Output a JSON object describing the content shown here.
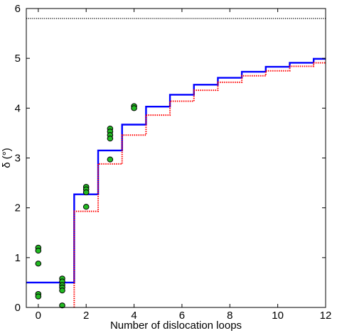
{
  "chart_data": {
    "type": "line",
    "title": "",
    "xlabel": "Number of dislocation loops",
    "ylabel": "δ (°)",
    "xlim": [
      -0.5,
      12
    ],
    "ylim": [
      0,
      6
    ],
    "xticks": [
      0,
      2,
      4,
      6,
      8,
      10,
      12
    ],
    "yticks": [
      0,
      1,
      2,
      3,
      4,
      5,
      6
    ],
    "grid": false,
    "legend": "none",
    "series": [
      {
        "style": "solid step",
        "color": "#0000ff",
        "x": [
          -0.5,
          1.5,
          1.5,
          2.5,
          2.5,
          3.5,
          3.5,
          4.5,
          4.5,
          5.5,
          5.5,
          6.5,
          6.5,
          7.5,
          7.5,
          8.5,
          8.5,
          9.5,
          9.5,
          10.5,
          10.5,
          11.5,
          11.5,
          12
        ],
        "y": [
          0.5,
          0.5,
          2.27,
          2.27,
          3.15,
          3.15,
          3.67,
          3.67,
          4.03,
          4.03,
          4.27,
          4.27,
          4.47,
          4.47,
          4.61,
          4.61,
          4.73,
          4.73,
          4.83,
          4.83,
          4.91,
          4.91,
          4.99,
          4.99
        ]
      },
      {
        "style": "dotted step",
        "color": "#ff0000",
        "x": [
          1.5,
          1.5,
          2.5,
          2.5,
          3.5,
          3.5,
          4.5,
          4.5,
          5.5,
          5.5,
          6.5,
          6.5,
          7.5,
          7.5,
          8.5,
          8.5,
          9.5,
          9.5,
          10.5,
          10.5,
          11.5,
          11.5,
          12
        ],
        "y": [
          0,
          1.93,
          1.93,
          2.88,
          2.88,
          3.46,
          3.46,
          3.86,
          3.86,
          4.14,
          4.14,
          4.36,
          4.36,
          4.52,
          4.52,
          4.65,
          4.65,
          4.75,
          4.75,
          4.84,
          4.84,
          4.91,
          4.91
        ]
      },
      {
        "style": "dotted horizontal",
        "color": "#333333",
        "x": [
          -0.5,
          12
        ],
        "y": [
          5.8,
          5.8
        ]
      }
    ],
    "scatter": {
      "color": "#22bb22",
      "edge": "#000000",
      "points": [
        {
          "x": 0,
          "y": 1.2
        },
        {
          "x": 0,
          "y": 1.14
        },
        {
          "x": 0,
          "y": 0.88
        },
        {
          "x": 0,
          "y": 0.27
        },
        {
          "x": 0,
          "y": 0.22
        },
        {
          "x": 1,
          "y": 0.58
        },
        {
          "x": 1,
          "y": 0.52
        },
        {
          "x": 1,
          "y": 0.45
        },
        {
          "x": 1,
          "y": 0.4
        },
        {
          "x": 1,
          "y": 0.34
        },
        {
          "x": 1,
          "y": 0.04
        },
        {
          "x": 2,
          "y": 2.42
        },
        {
          "x": 2,
          "y": 2.37
        },
        {
          "x": 2,
          "y": 2.31
        },
        {
          "x": 2,
          "y": 2.02
        },
        {
          "x": 3,
          "y": 3.59
        },
        {
          "x": 3,
          "y": 3.53
        },
        {
          "x": 3,
          "y": 3.46
        },
        {
          "x": 3,
          "y": 3.39
        },
        {
          "x": 3,
          "y": 2.97
        },
        {
          "x": 4,
          "y": 4.04
        },
        {
          "x": 4,
          "y": 4.0
        }
      ]
    }
  }
}
